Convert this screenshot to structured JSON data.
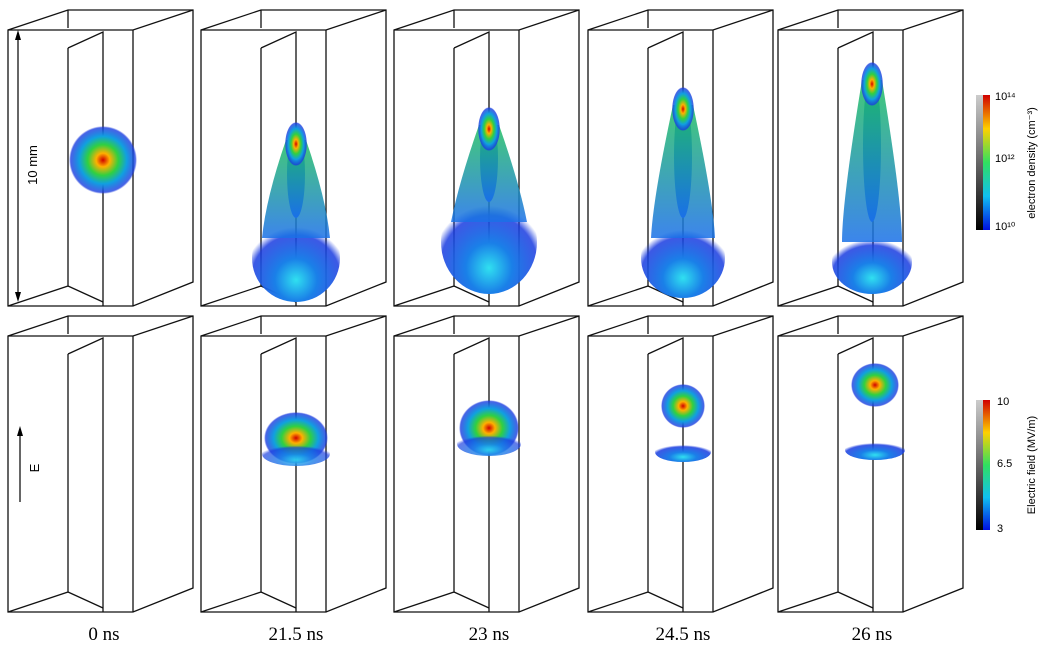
{
  "scale_label": "10 mm",
  "field_label": "E",
  "time_labels": [
    "0 ns",
    "21.5 ns",
    "23 ns",
    "24.5 ns",
    "26 ns"
  ],
  "colorbars": [
    {
      "label": "electron density (cm⁻³)",
      "ticks": [
        "10¹⁴",
        "10¹²",
        "10¹⁰"
      ]
    },
    {
      "label": "Electric field (MV/m)",
      "ticks": [
        "10",
        "6.5",
        "3"
      ]
    }
  ]
}
